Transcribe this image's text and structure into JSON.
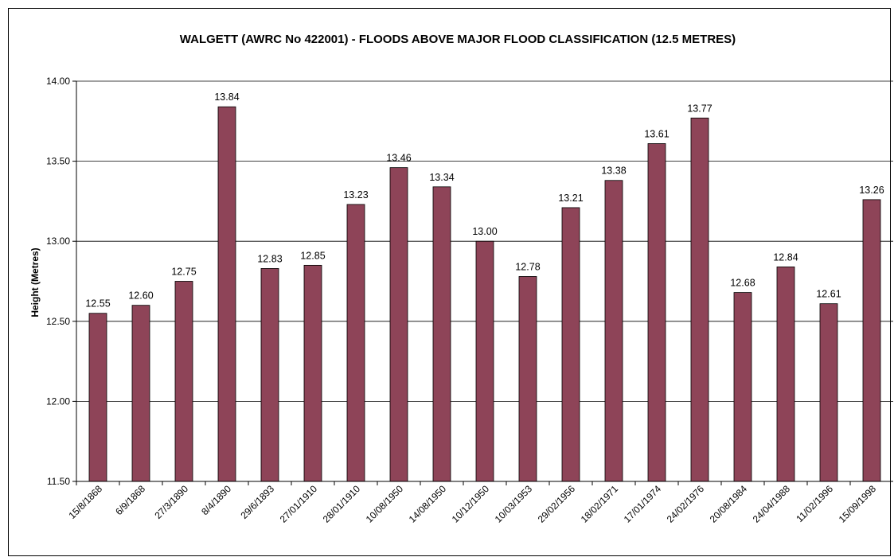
{
  "chart_data": {
    "type": "bar",
    "title": "WALGETT (AWRC No 422001) - FLOODS ABOVE MAJOR FLOOD CLASSIFICATION (12.5 METRES)",
    "xlabel": "",
    "ylabel": "Height (Metres)",
    "ylim": [
      11.5,
      14.0
    ],
    "yticks": [
      "11.50",
      "12.00",
      "12.50",
      "13.00",
      "13.50",
      "14.00"
    ],
    "grid": true,
    "bar_color": "#8e4458",
    "categories": [
      "15/8/1868",
      "6/9/1868",
      "27/3/1890",
      "8/4/1890",
      "29/6/1893",
      "27/01/1910",
      "28/01/1910",
      "10/08/1950",
      "14/08/1950",
      "10/12/1950",
      "10/03/1953",
      "29/02/1956",
      "18/02/1971",
      "17/01/1974",
      "24/02/1976",
      "20/08/1984",
      "24/04/1988",
      "11/02/1996",
      "15/09/1998"
    ],
    "values": [
      12.55,
      12.6,
      12.75,
      13.84,
      12.83,
      12.85,
      13.23,
      13.46,
      13.34,
      13.0,
      12.78,
      13.21,
      13.38,
      13.61,
      13.77,
      12.68,
      12.84,
      12.61,
      13.26
    ],
    "data_labels": [
      "12.55",
      "12.60",
      "12.75",
      "13.84",
      "12.83",
      "12.85",
      "13.23",
      "13.46",
      "13.34",
      "13.00",
      "12.78",
      "13.21",
      "13.38",
      "13.61",
      "13.77",
      "12.68",
      "12.84",
      "12.61",
      "13.26"
    ]
  }
}
